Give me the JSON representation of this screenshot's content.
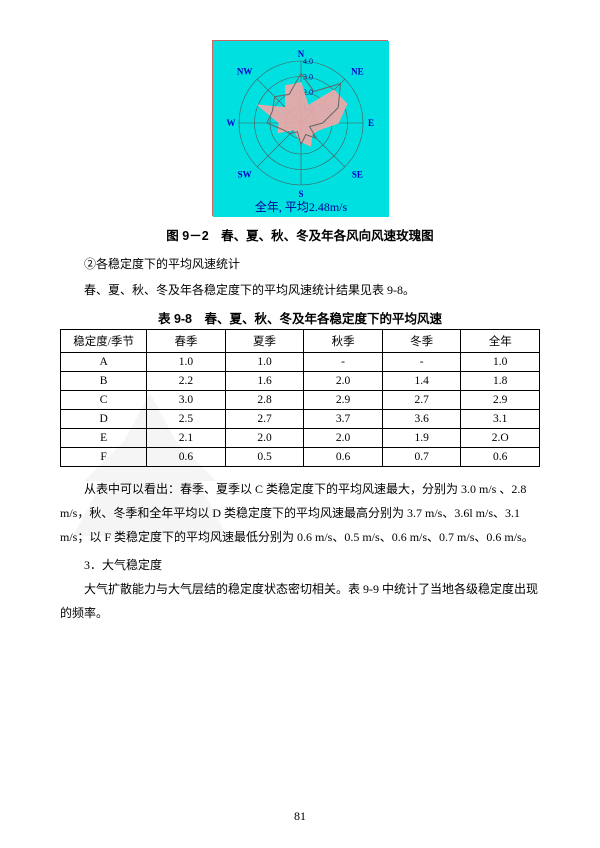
{
  "rose_chart": {
    "type": "windrose",
    "background_color": "#00e0e0",
    "axis_labels": [
      "N",
      "NE",
      "E",
      "SE",
      "S",
      "SW",
      "W",
      "NW"
    ],
    "axis_label_color": "#0000cc",
    "axis_label_fontsize": 9,
    "rings": [
      1.0,
      2.0,
      3.0,
      4.0
    ],
    "ring_labels": [
      "1.0",
      "2.0",
      "3.0",
      "4.0"
    ],
    "ring_label_color": "#000099",
    "ring_color": "#555555",
    "caption_text": "全年, 平均2.48m/s",
    "caption_color": "#000099",
    "series": [
      {
        "name": "pink",
        "fill": "#f4a6a6",
        "stroke": "#f4a6a6",
        "values_by_dir": {
          "N": 2.6,
          "NNE": 1.2,
          "NE": 3.0,
          "ENE": 3.2,
          "E": 2.4,
          "ESE": 1.2,
          "SE": 1.0,
          "SSE": 1.6,
          "S": 1.2,
          "SSW": 0.8,
          "SW": 0.6,
          "WSW": 1.6,
          "W": 1.4,
          "WNW": 3.0,
          "NW": 1.4,
          "NNW": 2.6
        }
      },
      {
        "name": "gray",
        "fill": "none",
        "stroke": "#666666",
        "values_by_dir": {
          "N": 3.2,
          "NNE": 2.2,
          "NE": 3.6,
          "ENE": 2.6,
          "E": 1.4,
          "ESE": 0.6,
          "SE": 1.4,
          "SSE": 0.8,
          "S": 1.4,
          "SSW": 0.6,
          "SW": 1.0,
          "WSW": 1.2,
          "W": 2.2,
          "WNW": 2.0,
          "NW": 2.4,
          "NNW": 2.0
        }
      }
    ]
  },
  "fig_caption": "图 9－2　春、夏、秋、冬及年各风向风速玫瑰图",
  "para1": "②各稳定度下的平均风速统计",
  "para2": "春、夏、秋、冬及年各稳定度下的平均风速统计结果见表 9-8。",
  "table_caption": "表 9-8　春、夏、秋、冬及年各稳定度下的平均风速",
  "table": {
    "columns": [
      "稳定度/季节",
      "春季",
      "夏季",
      "秋季",
      "冬季",
      "全年"
    ],
    "rows": [
      [
        "A",
        "1.0",
        "1.0",
        "-",
        "-",
        "1.0"
      ],
      [
        "B",
        "2.2",
        "1.6",
        "2.0",
        "1.4",
        "1.8"
      ],
      [
        "C",
        "3.0",
        "2.8",
        "2.9",
        "2.7",
        "2.9"
      ],
      [
        "D",
        "2.5",
        "2.7",
        "3.7",
        "3.6",
        "3.1"
      ],
      [
        "E",
        "2.1",
        "2.0",
        "2.0",
        "1.9",
        "2.O"
      ],
      [
        "F",
        "0.6",
        "0.5",
        "0.6",
        "0.7",
        "0.6"
      ]
    ],
    "col_widths_pct": [
      18,
      16.4,
      16.4,
      16.4,
      16.4,
      16.4
    ],
    "border_color": "#000000",
    "fontsize": 11.5
  },
  "para3": "从表中可以看出：春季、夏季以 C 类稳定度下的平均风速最大，分别为 3.0 m/s 、2.8 m/s，秋、冬季和全年平均以 D 类稳定度下的平均风速最高分别为 3.7 m/s、3.6l m/s、3.1 m/s；以 F 类稳定度下的平均风速最低分别为 0.6 m/s、0.5 m/s、0.6 m/s、0.7 m/s、0.6 m/s。",
  "section3": "3．大气稳定度",
  "para4": "大气扩散能力与大气层结的稳定度状态密切相关。表 9-9 中统计了当地各级稳定度出现的频率。",
  "page_number": "81"
}
